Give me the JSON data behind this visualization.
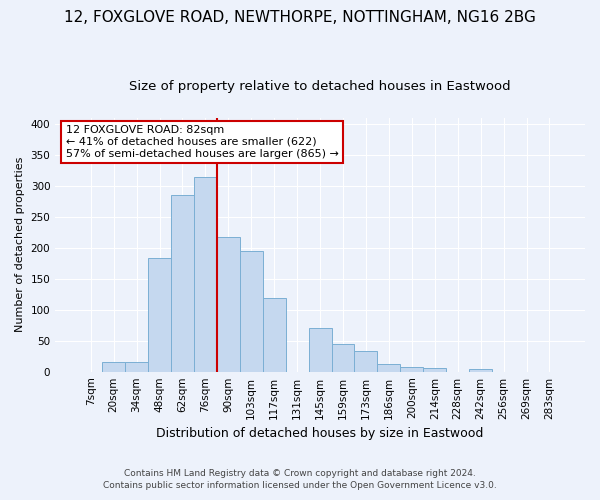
{
  "title": "12, FOXGLOVE ROAD, NEWTHORPE, NOTTINGHAM, NG16 2BG",
  "subtitle": "Size of property relative to detached houses in Eastwood",
  "xlabel": "Distribution of detached houses by size in Eastwood",
  "ylabel": "Number of detached properties",
  "bin_labels": [
    "7sqm",
    "20sqm",
    "34sqm",
    "48sqm",
    "62sqm",
    "76sqm",
    "90sqm",
    "103sqm",
    "117sqm",
    "131sqm",
    "145sqm",
    "159sqm",
    "173sqm",
    "186sqm",
    "200sqm",
    "214sqm",
    "228sqm",
    "242sqm",
    "256sqm",
    "269sqm",
    "283sqm"
  ],
  "bar_heights": [
    0,
    16,
    16,
    184,
    286,
    315,
    218,
    195,
    119,
    0,
    70,
    45,
    33,
    12,
    8,
    6,
    0,
    5,
    0,
    0,
    0
  ],
  "bar_color": "#c5d8ef",
  "bar_edge_color": "#7bafd4",
  "vline_x_index": 5.5,
  "vline_color": "#cc0000",
  "annotation_line1": "12 FOXGLOVE ROAD: 82sqm",
  "annotation_line2": "← 41% of detached houses are smaller (622)",
  "annotation_line3": "57% of semi-detached houses are larger (865) →",
  "annotation_box_color": "#ffffff",
  "annotation_box_edge_color": "#cc0000",
  "footer_line1": "Contains HM Land Registry data © Crown copyright and database right 2024.",
  "footer_line2": "Contains public sector information licensed under the Open Government Licence v3.0.",
  "ylim": [
    0,
    410
  ],
  "yticks": [
    0,
    50,
    100,
    150,
    200,
    250,
    300,
    350,
    400
  ],
  "title_fontsize": 11,
  "subtitle_fontsize": 9.5,
  "xlabel_fontsize": 9,
  "ylabel_fontsize": 8,
  "tick_fontsize": 7.5,
  "annot_fontsize": 8,
  "footer_fontsize": 6.5,
  "background_color": "#edf2fb",
  "grid_color": "#ffffff"
}
